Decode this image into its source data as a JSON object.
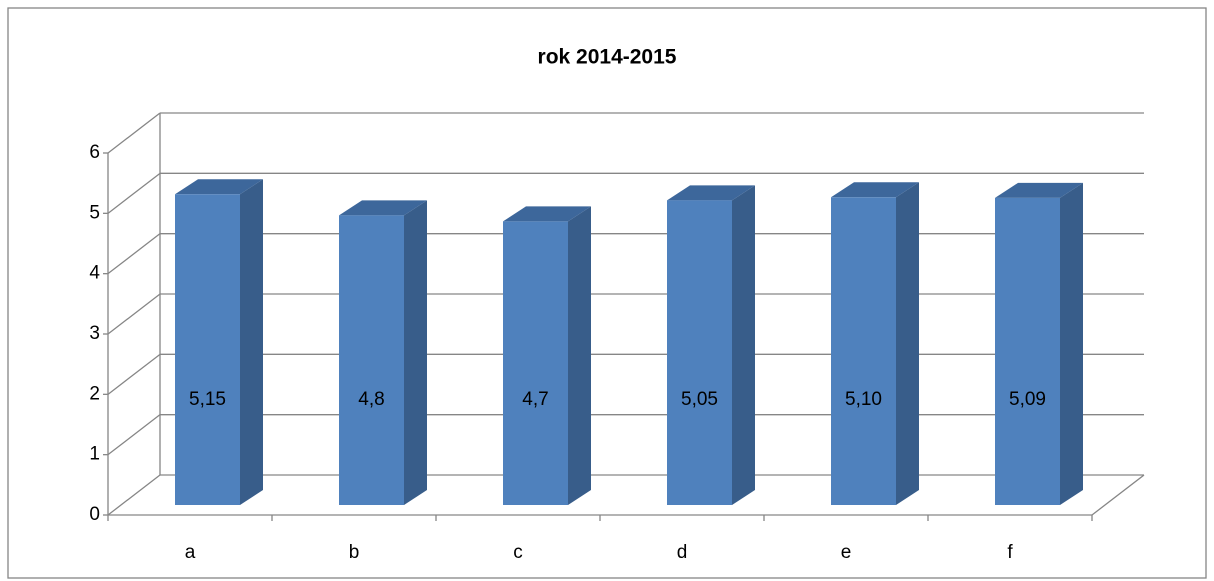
{
  "chart_data": {
    "type": "bar3d",
    "title": "rok 2014-2015",
    "categories": [
      "a",
      "b",
      "c",
      "d",
      "e",
      "f"
    ],
    "values": [
      5.15,
      4.8,
      4.7,
      5.05,
      5.1,
      5.09
    ],
    "value_labels": [
      "5,15",
      "4,8",
      "4,7",
      "5,05",
      "5,10",
      "5,09"
    ],
    "color": "#4f81bd",
    "ylim": [
      0,
      6
    ],
    "yticks": [
      0,
      1,
      2,
      3,
      4,
      5,
      6
    ],
    "grid": true
  }
}
